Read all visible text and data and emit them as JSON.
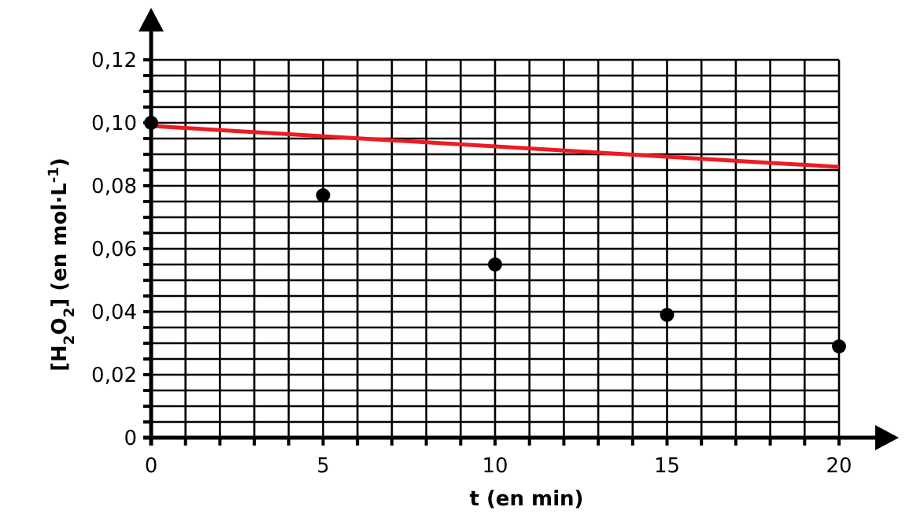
{
  "chart_data": {
    "type": "scatter",
    "xlabel": "t (en min)",
    "ylabel": "[H$_{2}$O$_{2}$] (en mol·L$^{-1}$)",
    "xlim": [
      0,
      20
    ],
    "ylim": [
      0,
      0.12
    ],
    "xticks": [
      0,
      {
        "value": 1,
        "label": null
      },
      {
        "value": 2,
        "label": null
      },
      {
        "value": 3,
        "label": null
      },
      {
        "value": 4,
        "label": null
      },
      5,
      {
        "value": 6,
        "label": null
      },
      {
        "value": 7,
        "label": null
      },
      {
        "value": 8,
        "label": null
      },
      {
        "value": 9,
        "label": null
      },
      10,
      {
        "value": 11,
        "label": null
      },
      {
        "value": 12,
        "label": null
      },
      {
        "value": 13,
        "label": null
      },
      {
        "value": 14,
        "label": null
      },
      15,
      {
        "value": 16,
        "label": null
      },
      {
        "value": 17,
        "label": null
      },
      {
        "value": 18,
        "label": null
      },
      {
        "value": 19,
        "label": null
      },
      20
    ],
    "yticks": [
      0,
      {
        "value": 0.005,
        "label": null
      },
      {
        "value": 0.01,
        "label": null
      },
      {
        "value": 0.015,
        "label": null
      },
      {
        "value": 0.02,
        "label": "0,02"
      },
      {
        "value": 0.025,
        "label": null
      },
      {
        "value": 0.03,
        "label": null
      },
      {
        "value": 0.035,
        "label": null
      },
      {
        "value": 0.04,
        "label": "0,04"
      },
      {
        "value": 0.045,
        "label": null
      },
      {
        "value": 0.05,
        "label": null
      },
      {
        "value": 0.055,
        "label": null
      },
      {
        "value": 0.06,
        "label": "0,06"
      },
      {
        "value": 0.065,
        "label": null
      },
      {
        "value": 0.07,
        "label": null
      },
      {
        "value": 0.075,
        "label": null
      },
      {
        "value": 0.08,
        "label": "0,08"
      },
      {
        "value": 0.085,
        "label": null
      },
      {
        "value": 0.09,
        "label": null
      },
      {
        "value": 0.095,
        "label": null
      },
      {
        "value": 0.1,
        "label": "0,10"
      },
      {
        "value": 0.105,
        "label": null
      },
      {
        "value": 0.11,
        "label": null
      },
      {
        "value": 0.115,
        "label": null
      },
      {
        "value": 0.12,
        "label": "0,12"
      }
    ],
    "grid": true,
    "series": [
      {
        "type": "line",
        "color": "#ed1c24",
        "x": [
          0,
          20
        ],
        "values": [
          0.099,
          0.086
        ],
        "marker": "none",
        "line_style": "solid"
      },
      {
        "type": "scatter",
        "color": "#000000",
        "x": [
          0,
          5,
          10,
          15,
          20
        ],
        "values": [
          0.1,
          0.077,
          0.055,
          0.039,
          0.029
        ],
        "marker": "circle"
      }
    ]
  }
}
